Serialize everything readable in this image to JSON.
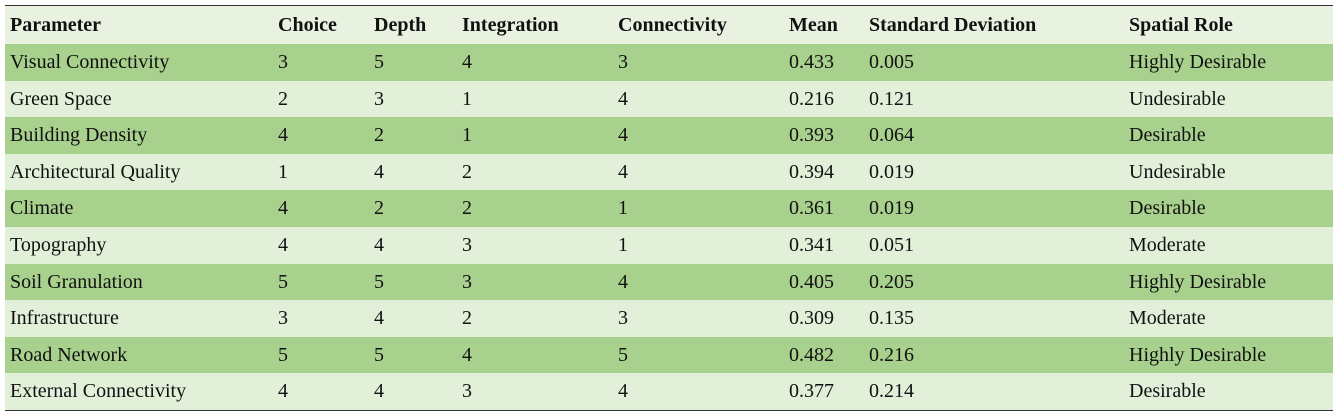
{
  "table": {
    "header": [
      "Parameter",
      "Choice",
      "Depth",
      "Integration",
      "Connectivity",
      "Mean",
      "Standard Deviation",
      "Spatial Role"
    ],
    "rows": [
      [
        "Visual Connectivity",
        3,
        5,
        4,
        3,
        0.433,
        0.005,
        "Highly Desirable"
      ],
      [
        "Green Space",
        2,
        3,
        1,
        4,
        0.216,
        0.121,
        "Undesirable"
      ],
      [
        "Building Density",
        4,
        2,
        1,
        4,
        0.393,
        0.064,
        "Desirable"
      ],
      [
        "Architectural Quality",
        1,
        4,
        2,
        4,
        0.394,
        0.019,
        "Undesirable"
      ],
      [
        "Climate",
        4,
        2,
        2,
        1,
        0.361,
        0.019,
        "Desirable"
      ],
      [
        "Topography",
        4,
        4,
        3,
        1,
        0.341,
        0.051,
        "Moderate"
      ],
      [
        "Soil Granulation",
        5,
        5,
        3,
        4,
        0.405,
        0.205,
        "Highly Desirable"
      ],
      [
        "Infrastructure",
        3,
        4,
        2,
        3,
        0.309,
        0.135,
        "Moderate"
      ],
      [
        "Road Network",
        5,
        5,
        4,
        5,
        0.482,
        0.216,
        "Highly Desirable"
      ],
      [
        "External Connectivity",
        4,
        4,
        3,
        4,
        0.377,
        0.214,
        "Desirable"
      ]
    ]
  }
}
